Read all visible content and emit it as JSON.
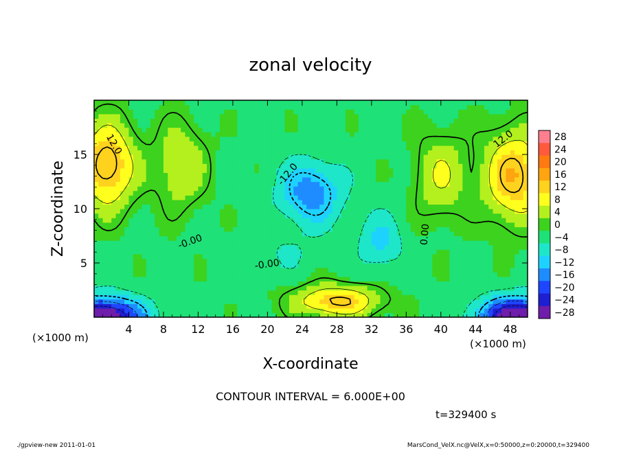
{
  "chart_data": {
    "type": "heatmap",
    "title": "zonal velocity",
    "xlabel": "X-coordinate",
    "ylabel": "Z-coordinate",
    "x_unit_left": "(×1000 m)",
    "x_unit_right": "(×1000 m)",
    "xlim": [
      0,
      50
    ],
    "ylim": [
      0,
      20
    ],
    "x_ticks": [
      4,
      8,
      12,
      16,
      20,
      24,
      28,
      32,
      36,
      40,
      44,
      48
    ],
    "y_ticks": [
      5,
      10,
      15
    ],
    "contour_interval_text": "CONTOUR INTERVAL = 6.000E+00",
    "time_text": "t=329400 s",
    "contour_labels": [
      {
        "text": "12.0",
        "x": 2.0,
        "y": 15.8,
        "angle": 60
      },
      {
        "text": "-12.0",
        "x": 22.6,
        "y": 13.0,
        "angle": -50
      },
      {
        "text": "-0.00",
        "x": 11.2,
        "y": 6.7,
        "angle": -20
      },
      {
        "text": "-0.00",
        "x": 20.0,
        "y": 4.6,
        "angle": -8
      },
      {
        "text": "0.00",
        "x": 38.5,
        "y": 7.6,
        "angle": -85
      },
      {
        "text": "12.0",
        "x": 47.4,
        "y": 16.2,
        "angle": -38
      }
    ],
    "colorbar": {
      "levels": [
        28,
        24,
        20,
        16,
        12,
        8,
        4,
        0,
        -4,
        -8,
        -12,
        -16,
        -20,
        -24,
        -28
      ],
      "colors": [
        "#ff7f8f",
        "#ff5a3c",
        "#ff7a10",
        "#ffa510",
        "#ffd21e",
        "#ffff1e",
        "#b4f01e",
        "#3cd21e",
        "#1ee178",
        "#1ee6c8",
        "#1ed2ff",
        "#1e8cff",
        "#1e46ff",
        "#1e1ed2",
        "#6e1eaa"
      ]
    },
    "fields": {
      "background": -3,
      "features": [
        {
          "x": 1.5,
          "y": 14.0,
          "sx": 3.2,
          "sy": 4.0,
          "v": 18
        },
        {
          "x": 48.5,
          "y": 13.0,
          "sx": 3.5,
          "sy": 4.2,
          "v": 17
        },
        {
          "x": 25.0,
          "y": 11.5,
          "sx": 3.5,
          "sy": 2.8,
          "v": -14
        },
        {
          "x": 28.0,
          "y": 1.5,
          "sx": 5.0,
          "sy": 1.5,
          "v": 16
        },
        {
          "x": 33.0,
          "y": 7.0,
          "sx": 2.5,
          "sy": 2.5,
          "v": -8
        },
        {
          "x": 1.0,
          "y": 0.0,
          "sx": 4.5,
          "sy": 1.8,
          "v": -30
        },
        {
          "x": 49.0,
          "y": 0.0,
          "sx": 4.5,
          "sy": 1.8,
          "v": -30
        },
        {
          "x": 10.0,
          "y": 14.0,
          "sx": 3.0,
          "sy": 4.0,
          "v": 9
        },
        {
          "x": 40.0,
          "y": 13.0,
          "sx": 3.0,
          "sy": 4.0,
          "v": 9
        },
        {
          "x": 22.0,
          "y": 6.0,
          "sx": 4.0,
          "sy": 2.0,
          "v": -3
        }
      ]
    }
  },
  "footer": {
    "left": "./gpview-new   2011-01-01",
    "right": "MarsCond_VelX.nc@VelX,x=0:50000,z=0:20000,t=329400"
  }
}
